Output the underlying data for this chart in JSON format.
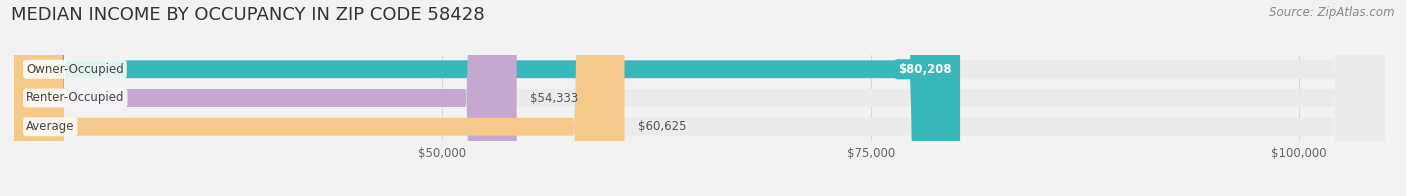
{
  "title": "MEDIAN INCOME BY OCCUPANCY IN ZIP CODE 58428",
  "source": "Source: ZipAtlas.com",
  "categories": [
    "Owner-Occupied",
    "Renter-Occupied",
    "Average"
  ],
  "values": [
    80208,
    54333,
    60625
  ],
  "labels": [
    "$80,208",
    "$54,333",
    "$60,625"
  ],
  "bar_colors": [
    "#39b8bc",
    "#c4a8d0",
    "#f5c98a"
  ],
  "bar_bg_colors": [
    "#ebebeb",
    "#ebebeb",
    "#ebebeb"
  ],
  "label_bg_colors": [
    "#39b8bc",
    "#c4a8d0",
    "#f5c98a"
  ],
  "label_text_colors": [
    "#ffffff",
    "#555555",
    "#555555"
  ],
  "xmin": 25000,
  "xmax": 105000,
  "xticks": [
    50000,
    75000,
    100000
  ],
  "xtick_labels": [
    "$50,000",
    "$75,000",
    "$100,000"
  ],
  "title_fontsize": 13,
  "source_fontsize": 8.5,
  "label_fontsize": 8.5,
  "category_fontsize": 8.5,
  "background_color": "#f2f2f2",
  "bar_height": 0.62,
  "grid_color": "#d8d8d8",
  "rounding_size": 3000
}
